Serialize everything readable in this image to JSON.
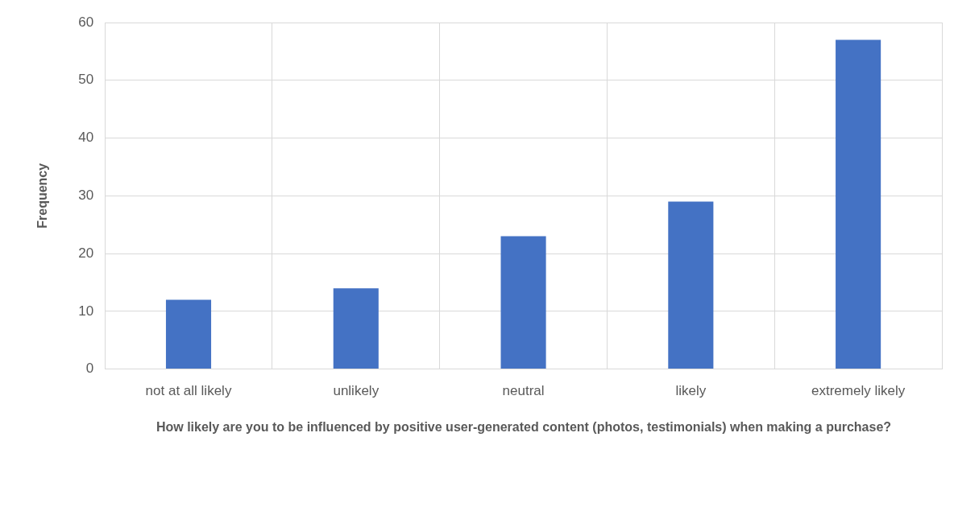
{
  "chart_data": {
    "type": "bar",
    "xlabel": "How likely are you to be influenced by positive user-generated content (photos, testimonials) when making a purchase?",
    "ylabel": "Frequency",
    "categories": [
      "not at all likely",
      "unlikely",
      "neutral",
      "likely",
      "extremely likely"
    ],
    "values": [
      12,
      14,
      23,
      29,
      57
    ],
    "color": "#4472c4",
    "ylim": [
      0,
      60
    ],
    "yticks": [
      0,
      10,
      20,
      30,
      40,
      50,
      60
    ],
    "grid": true
  }
}
